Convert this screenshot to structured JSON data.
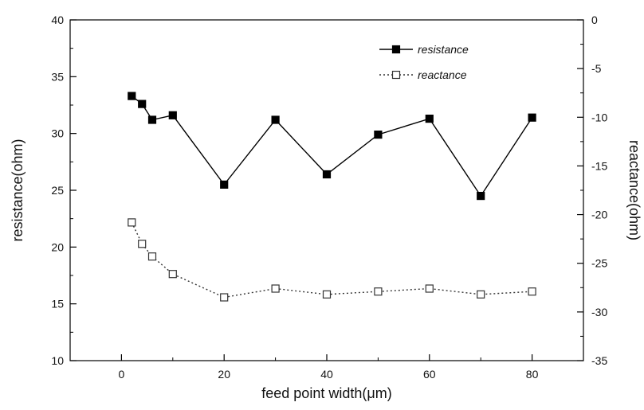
{
  "chart_data": {
    "type": "line",
    "title": "",
    "xlabel": "feed point width(μm)",
    "ylabel_left": "resistance(ohm)",
    "ylabel_right": "reactance(ohm)",
    "xlim": [
      -10,
      90
    ],
    "ylim_left": [
      10,
      40
    ],
    "ylim_right": [
      -35,
      0
    ],
    "x_ticks": [
      0,
      20,
      40,
      60,
      80
    ],
    "y_ticks_left": [
      10,
      15,
      20,
      25,
      30,
      35,
      40
    ],
    "y_ticks_right": [
      -35,
      -30,
      -25,
      -20,
      -15,
      -10,
      -5,
      0
    ],
    "grid": false,
    "legend_position": "top-right",
    "series": [
      {
        "name": "resistance",
        "axis": "left",
        "marker": "filled-square",
        "line": "solid",
        "color": "#000000",
        "x": [
          2,
          4,
          6,
          10,
          20,
          30,
          40,
          50,
          60,
          70,
          80
        ],
        "y": [
          33.3,
          32.6,
          31.2,
          31.6,
          25.5,
          31.2,
          26.4,
          29.9,
          31.3,
          24.5,
          31.4
        ]
      },
      {
        "name": "reactance",
        "axis": "right",
        "marker": "open-square",
        "line": "dotted",
        "color": "#333333",
        "x": [
          2,
          4,
          6,
          10,
          20,
          30,
          40,
          50,
          60,
          70,
          80
        ],
        "y": [
          -20.8,
          -23.0,
          -24.3,
          -26.1,
          -28.5,
          -27.6,
          -28.2,
          -27.9,
          -27.6,
          -28.2,
          -27.9
        ]
      }
    ]
  }
}
